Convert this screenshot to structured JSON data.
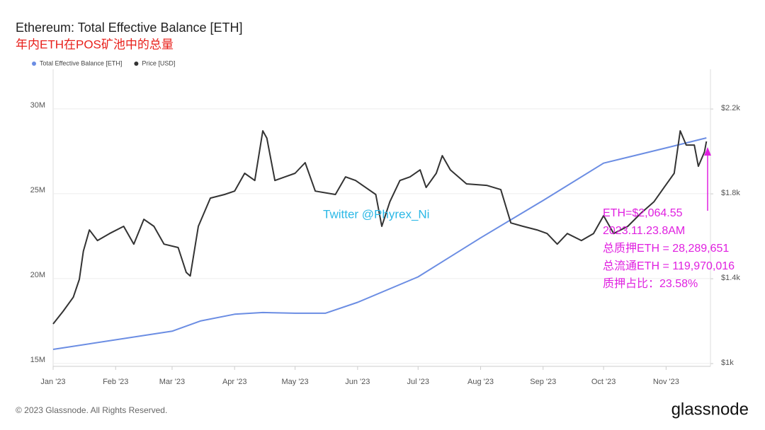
{
  "chart_data": {
    "type": "line",
    "title": "Ethereum: Total Effective Balance [ETH]",
    "subtitle": "年内ETH在POS矿池中的总量",
    "watermark": "Twitter @Phyrex_Ni",
    "annotations": [
      "ETH=$2,064.55",
      "2023.11.23.8AM",
      "总质押ETH = 28,289,651",
      "总流通ETH = 119,970,016",
      "质押占比：23.58%"
    ],
    "footer": "© 2023 Glassnode. All Rights Reserved.",
    "logo": "glassnode",
    "xlim": [
      0,
      326
    ],
    "xticks": [
      {
        "value": 0,
        "label": "Jan '23"
      },
      {
        "value": 31,
        "label": "Feb '23"
      },
      {
        "value": 59,
        "label": "Mar '23"
      },
      {
        "value": 90,
        "label": "Apr '23"
      },
      {
        "value": 120,
        "label": "May '23"
      },
      {
        "value": 151,
        "label": "Jun '23"
      },
      {
        "value": 181,
        "label": "Jul '23"
      },
      {
        "value": 212,
        "label": "Aug '23"
      },
      {
        "value": 243,
        "label": "Sep '23"
      },
      {
        "value": 273,
        "label": "Oct '23"
      },
      {
        "value": 304,
        "label": "Nov '23"
      }
    ],
    "ylim": [
      14830000,
      32330000
    ],
    "yticks": [
      {
        "value": 15000000,
        "label": "15M"
      },
      {
        "value": 20000000,
        "label": "20M"
      },
      {
        "value": 25000000,
        "label": "25M"
      },
      {
        "value": 30000000,
        "label": "30M"
      }
    ],
    "y2lim": [
      987,
      2387
    ],
    "y2ticks": [
      {
        "value": 1000,
        "label": "$1k"
      },
      {
        "value": 1400,
        "label": "$1.4k"
      },
      {
        "value": 1800,
        "label": "$1.8k"
      },
      {
        "value": 2200,
        "label": "$2.2k"
      }
    ],
    "grid": true,
    "legend": "top-left",
    "series": [
      {
        "name": "Total Effective Balance [ETH]",
        "color": "#6b8de3",
        "x": [
          0,
          59,
          73,
          90,
          104,
          120,
          135,
          151,
          181,
          212,
          243,
          273,
          304,
          324
        ],
        "values": [
          15830000,
          16900000,
          17500000,
          17900000,
          18000000,
          17960000,
          17960000,
          18600000,
          20100000,
          22400000,
          24600000,
          26800000,
          27700000,
          28290000
        ]
      },
      {
        "name": "Price [USD]",
        "color": "#333333",
        "axis": "y2",
        "x": [
          0,
          5,
          10,
          13,
          15,
          18,
          22,
          28,
          35,
          40,
          45,
          50,
          55,
          62,
          66,
          68,
          72,
          78,
          85,
          90,
          95,
          100,
          104,
          106,
          110,
          115,
          120,
          125,
          130,
          140,
          145,
          150,
          155,
          160,
          163,
          167,
          172,
          177,
          182,
          185,
          190,
          193,
          197,
          205,
          215,
          222,
          227,
          233,
          240,
          245,
          250,
          255,
          262,
          268,
          273,
          278,
          285,
          292,
          298,
          303,
          308,
          311,
          314,
          318,
          320,
          323,
          324
        ],
        "values": [
          1187,
          1247,
          1313,
          1397,
          1530,
          1630,
          1580,
          1613,
          1647,
          1563,
          1680,
          1647,
          1563,
          1547,
          1430,
          1413,
          1647,
          1780,
          1797,
          1813,
          1897,
          1863,
          2097,
          2063,
          1863,
          1880,
          1897,
          1947,
          1813,
          1797,
          1880,
          1863,
          1830,
          1797,
          1647,
          1763,
          1863,
          1880,
          1913,
          1830,
          1897,
          1980,
          1913,
          1847,
          1840,
          1820,
          1663,
          1647,
          1630,
          1613,
          1563,
          1613,
          1580,
          1613,
          1697,
          1613,
          1647,
          1713,
          1763,
          1830,
          1897,
          2097,
          2030,
          2030,
          1930,
          1997,
          2047
        ]
      }
    ]
  }
}
